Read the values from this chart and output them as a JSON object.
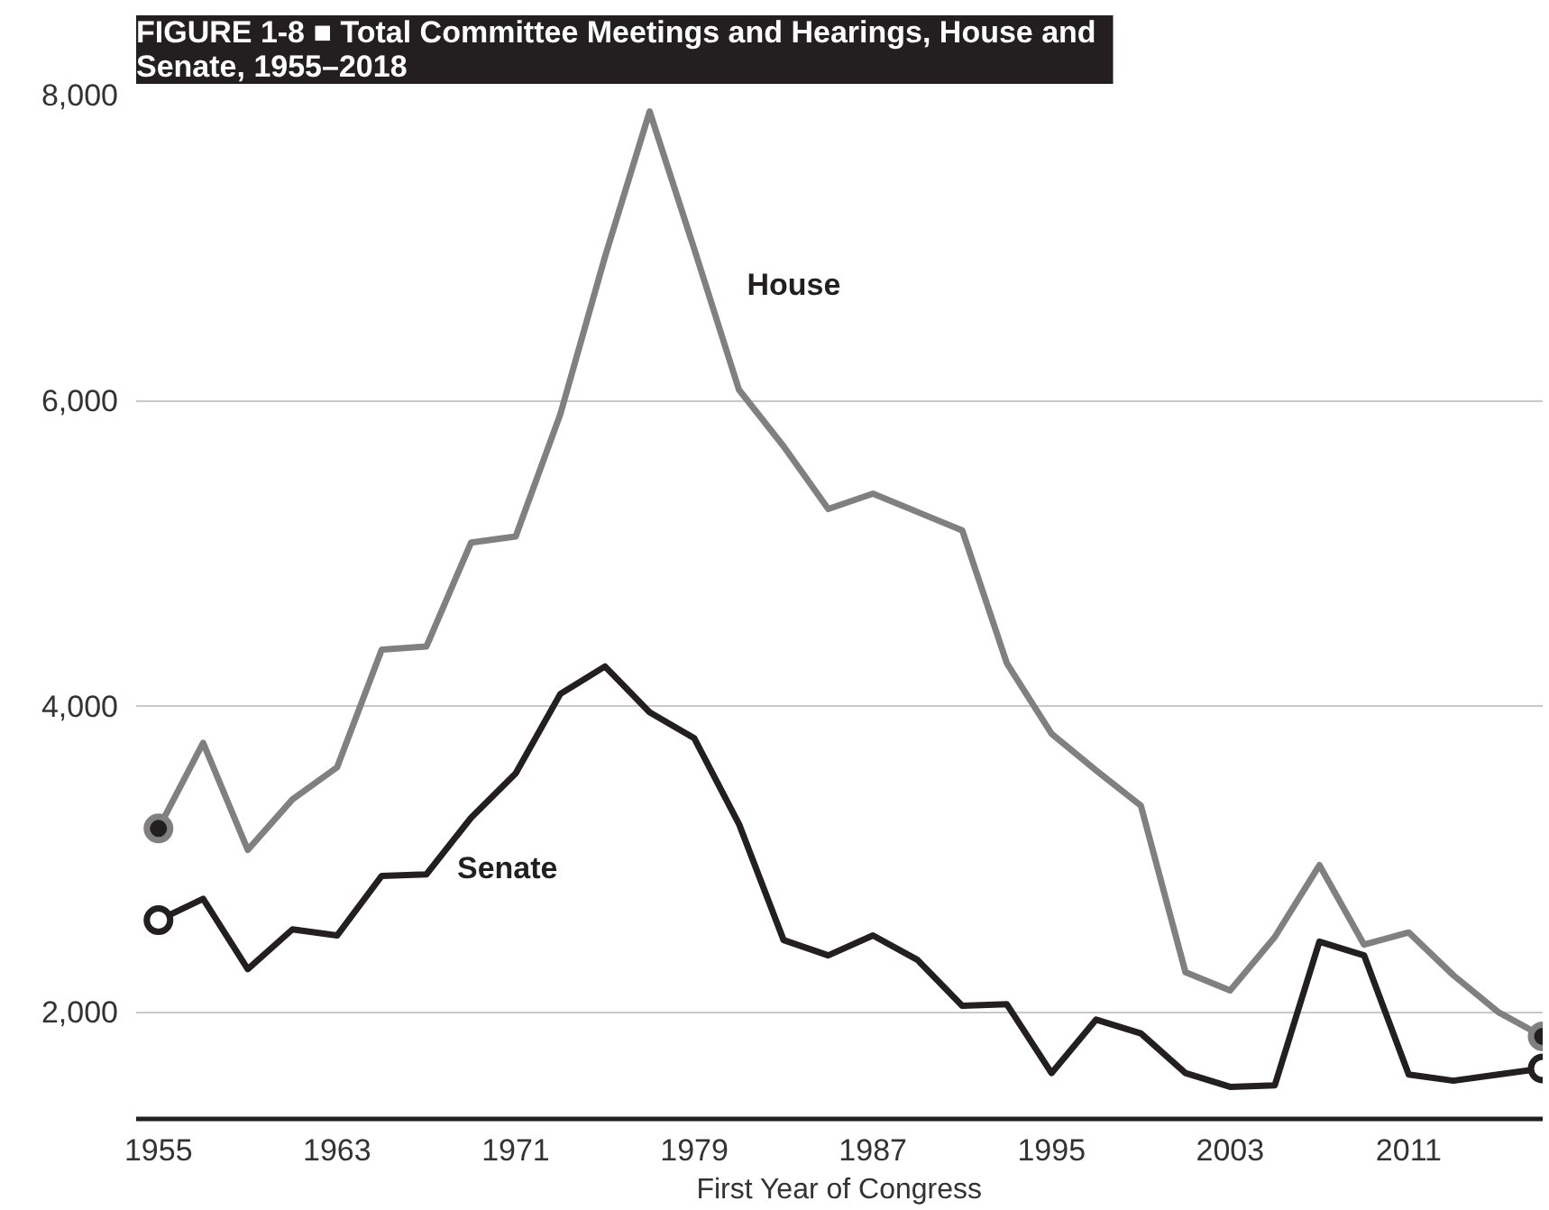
{
  "chart_data": {
    "type": "line",
    "title": "FIGURE 1-8  ■  Total Committee Meetings and Hearings, House and\nSenate, 1955–2018",
    "xlabel": "First Year of Congress",
    "x": [
      1955,
      1957,
      1959,
      1961,
      1963,
      1965,
      1967,
      1969,
      1971,
      1973,
      1975,
      1977,
      1979,
      1981,
      1983,
      1985,
      1987,
      1989,
      1991,
      1993,
      1995,
      1997,
      1999,
      2001,
      2003,
      2005,
      2007,
      2009,
      2011,
      2013,
      2015,
      2017
    ],
    "series": [
      {
        "name": "House",
        "color": "#808080",
        "values": [
          3200,
          3760,
          3060,
          3390,
          3600,
          4370,
          4390,
          5070,
          5110,
          5910,
          6940,
          7890,
          6990,
          6070,
          5700,
          5290,
          5390,
          5270,
          5150,
          4280,
          3820,
          3580,
          3350,
          2260,
          2140,
          2490,
          2960,
          2440,
          2520,
          2240,
          2000,
          1840
        ]
      },
      {
        "name": "Senate",
        "color": "#231f20",
        "values": [
          2600,
          2740,
          2280,
          2540,
          2500,
          2890,
          2900,
          3270,
          3560,
          4080,
          4260,
          3960,
          3790,
          3230,
          2470,
          2370,
          2500,
          2340,
          2040,
          2050,
          1600,
          1950,
          1860,
          1600,
          1510,
          1520,
          2460,
          2370,
          1590,
          1550,
          1590,
          1630
        ]
      }
    ],
    "xlim": [
      1954,
      2017
    ],
    "xticks": [
      1955,
      1963,
      1971,
      1979,
      1987,
      1995,
      2003,
      2011
    ],
    "ylim": [
      1300,
      8000
    ],
    "yticks": [
      {
        "value": 2000,
        "label": "2,000"
      },
      {
        "value": 4000,
        "label": "4,000"
      },
      {
        "value": 6000,
        "label": "6,000"
      },
      {
        "value": 8000,
        "label": "8,000"
      }
    ],
    "grid": "y",
    "line_style": "solid"
  }
}
